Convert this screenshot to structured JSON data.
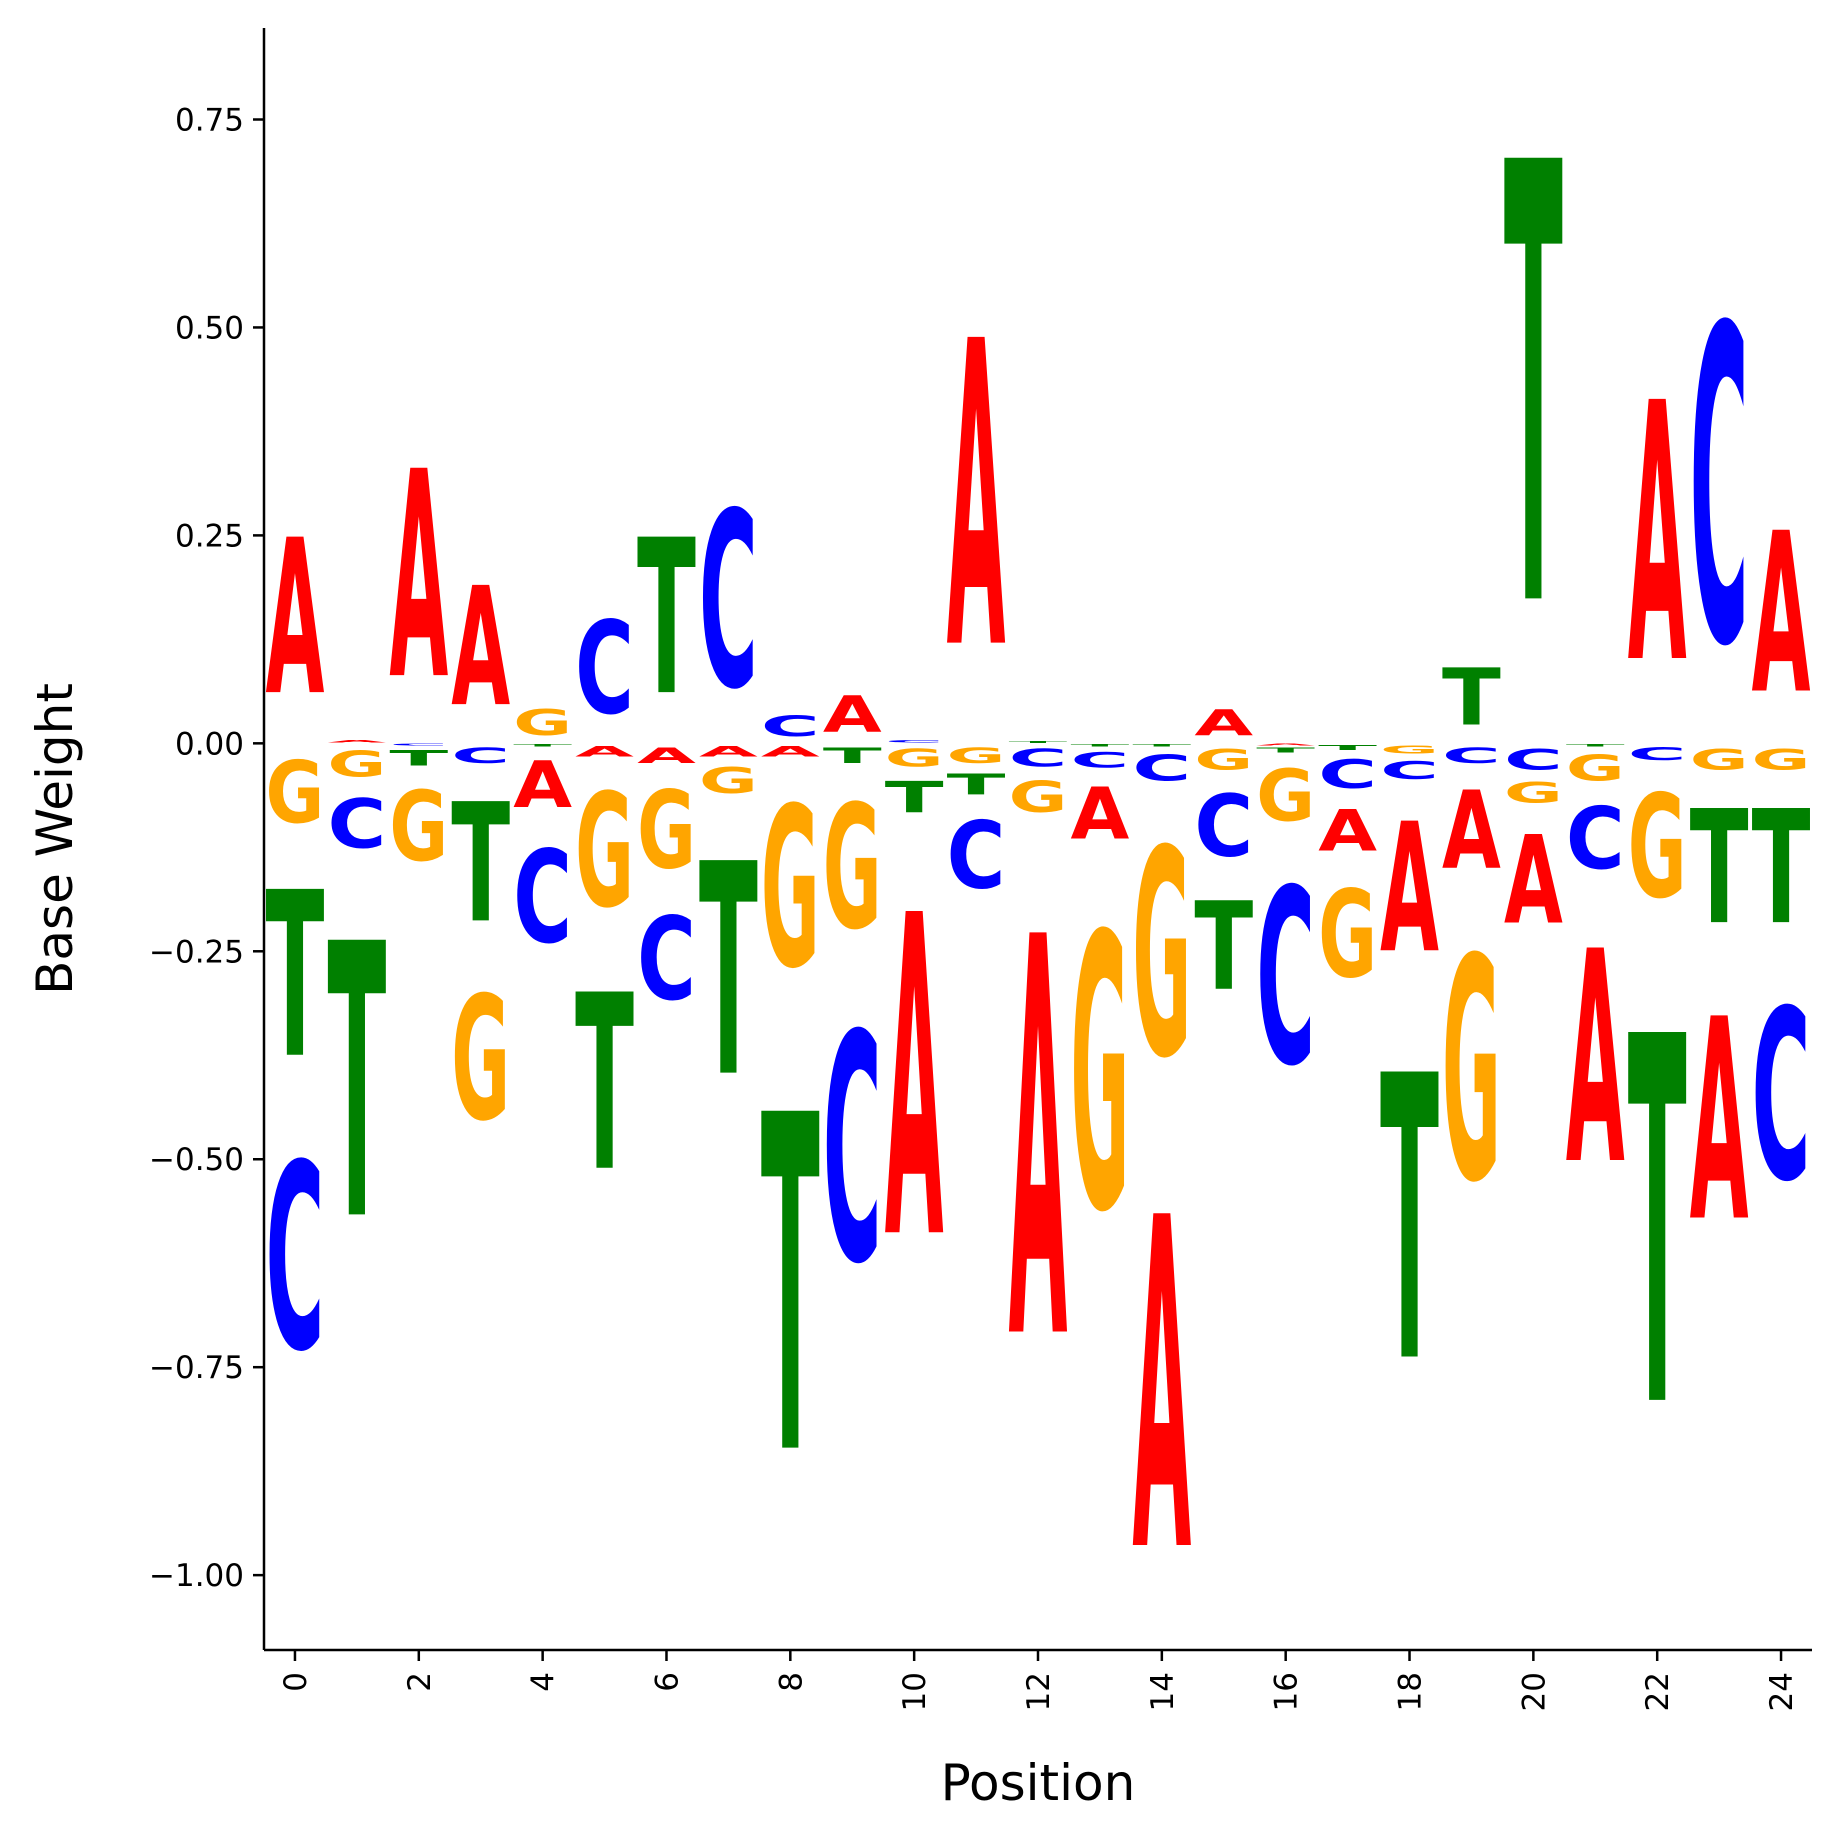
{
  "chart_data": {
    "type": "sequence-logo",
    "xlabel": "Position",
    "ylabel": "Base Weight",
    "ylim": [
      -1.09,
      0.86
    ],
    "xlim": [
      -0.5,
      24.5
    ],
    "x_ticks": [
      "0",
      "2",
      "4",
      "6",
      "8",
      "10",
      "12",
      "14",
      "16",
      "18",
      "20",
      "22",
      "24"
    ],
    "y_ticks": [
      "0.75",
      "0.50",
      "0.25",
      "0.00",
      "−0.25",
      "−0.50",
      "−0.75",
      "−1.00"
    ],
    "grid": false,
    "colors": {
      "A": "#ff0000",
      "C": "#0000ff",
      "G": "#ffa500",
      "T": "#008000"
    },
    "positions": [
      {
        "pos": 0,
        "A": 0.3,
        "C": -0.36,
        "G": -0.12,
        "T": -0.32
      },
      {
        "pos": 1,
        "A": 0.005,
        "C": -0.095,
        "G": -0.05,
        "T": -0.53
      },
      {
        "pos": 2,
        "A": 0.4,
        "C": -0.003,
        "G": -0.135,
        "T": -0.03
      },
      {
        "pos": 3,
        "A": 0.23,
        "C": -0.03,
        "G": -0.24,
        "T": -0.23
      },
      {
        "pos": 4,
        "A": -0.09,
        "C": -0.18,
        "G": 0.05,
        "T": -0.005
      },
      {
        "pos": 5,
        "A": -0.02,
        "C": 0.18,
        "G": -0.22,
        "T": -0.34
      },
      {
        "pos": 6,
        "A": -0.03,
        "C": -0.16,
        "G": -0.15,
        "T": 0.3
      },
      {
        "pos": 7,
        "A": -0.02,
        "C": 0.34,
        "G": -0.05,
        "T": -0.41
      },
      {
        "pos": 8,
        "A": -0.02,
        "C": 0.04,
        "G": -0.31,
        "T": -0.65
      },
      {
        "pos": 9,
        "A": 0.07,
        "C": -0.44,
        "G": -0.24,
        "T": -0.03
      },
      {
        "pos": 10,
        "A": -0.62,
        "C": 0.005,
        "G": -0.035,
        "T": -0.06
      },
      {
        "pos": 11,
        "A": 0.59,
        "C": -0.13,
        "G": -0.03,
        "T": -0.04
      },
      {
        "pos": 12,
        "A": -0.77,
        "C": -0.035,
        "G": -0.06,
        "T": 0.003
      },
      {
        "pos": 13,
        "A": -0.1,
        "C": -0.03,
        "G": -0.53,
        "T": -0.005
      },
      {
        "pos": 14,
        "A": -0.64,
        "C": -0.05,
        "G": -0.4,
        "T": -0.005
      },
      {
        "pos": 15,
        "A": 0.05,
        "C": -0.12,
        "G": -0.04,
        "T": -0.17
      },
      {
        "pos": 16,
        "A": -0.003,
        "C": -0.34,
        "G": -0.1,
        "T": -0.01
      },
      {
        "pos": 17,
        "A": -0.08,
        "C": -0.055,
        "G": -0.17,
        "T": -0.01
      },
      {
        "pos": 18,
        "A": -0.25,
        "C": -0.035,
        "G": -0.015,
        "T": -0.55
      },
      {
        "pos": 19,
        "A": -0.15,
        "C": -0.03,
        "G": -0.43,
        "T": 0.11
      },
      {
        "pos": 20,
        "A": -0.17,
        "C": -0.04,
        "G": -0.04,
        "T": 0.85
      },
      {
        "pos": 21,
        "A": -0.41,
        "C": -0.12,
        "G": -0.05,
        "T": -0.005
      },
      {
        "pos": 22,
        "A": 0.5,
        "C": -0.025,
        "G": -0.2,
        "T": -0.71
      },
      {
        "pos": 23,
        "A": -0.39,
        "C": 0.61,
        "G": -0.04,
        "T": -0.22
      },
      {
        "pos": 24,
        "A": 0.31,
        "C": -0.33,
        "G": -0.04,
        "T": -0.22
      }
    ]
  }
}
